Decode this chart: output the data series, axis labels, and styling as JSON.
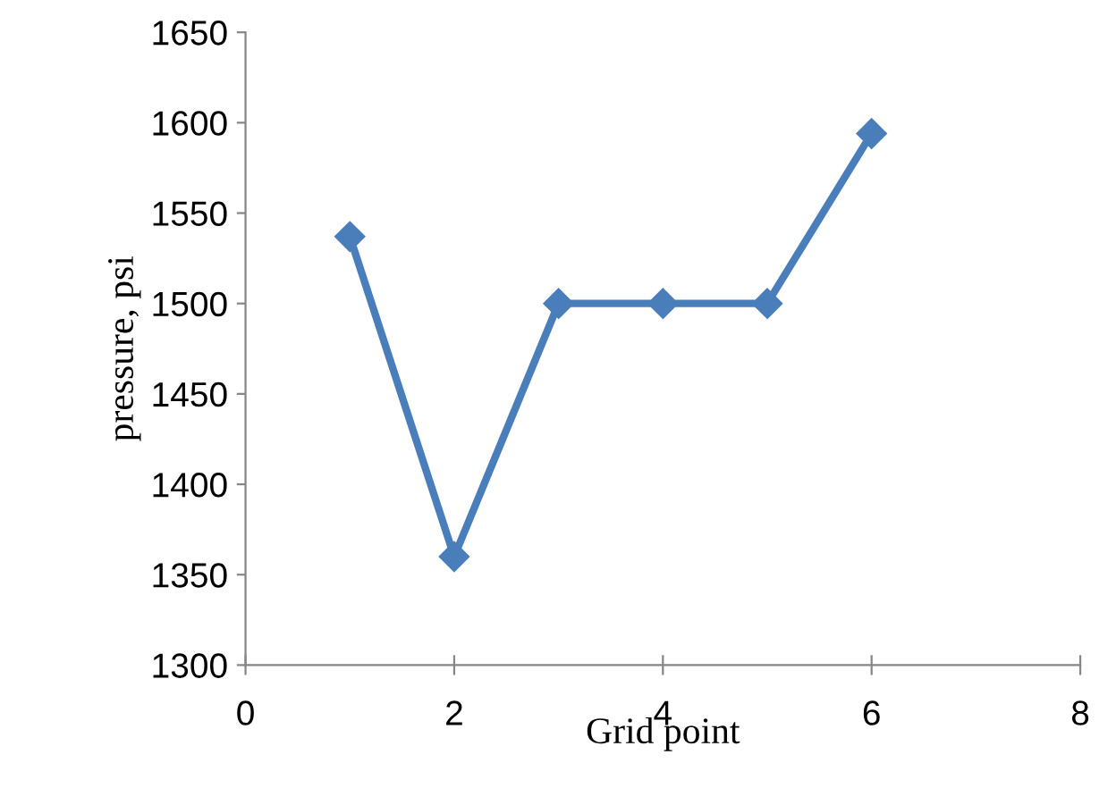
{
  "chart_data": {
    "type": "line",
    "xlabel": "Grid point",
    "ylabel": "pressure, psi",
    "x": [
      1,
      2,
      3,
      4,
      5,
      6
    ],
    "series": [
      {
        "color": "#4a7ebb",
        "values": [
          1537,
          1360,
          1500,
          1500,
          1500,
          1594
        ]
      }
    ],
    "xlim": [
      0,
      8
    ],
    "xticks": [
      0,
      2,
      4,
      6,
      8
    ],
    "ylim": [
      1300,
      1650
    ],
    "yticks": [
      1300,
      1350,
      1400,
      1450,
      1500,
      1550,
      1600,
      1650
    ],
    "marker": "diamond",
    "line_style": "solid",
    "grid": false,
    "legend": false
  }
}
